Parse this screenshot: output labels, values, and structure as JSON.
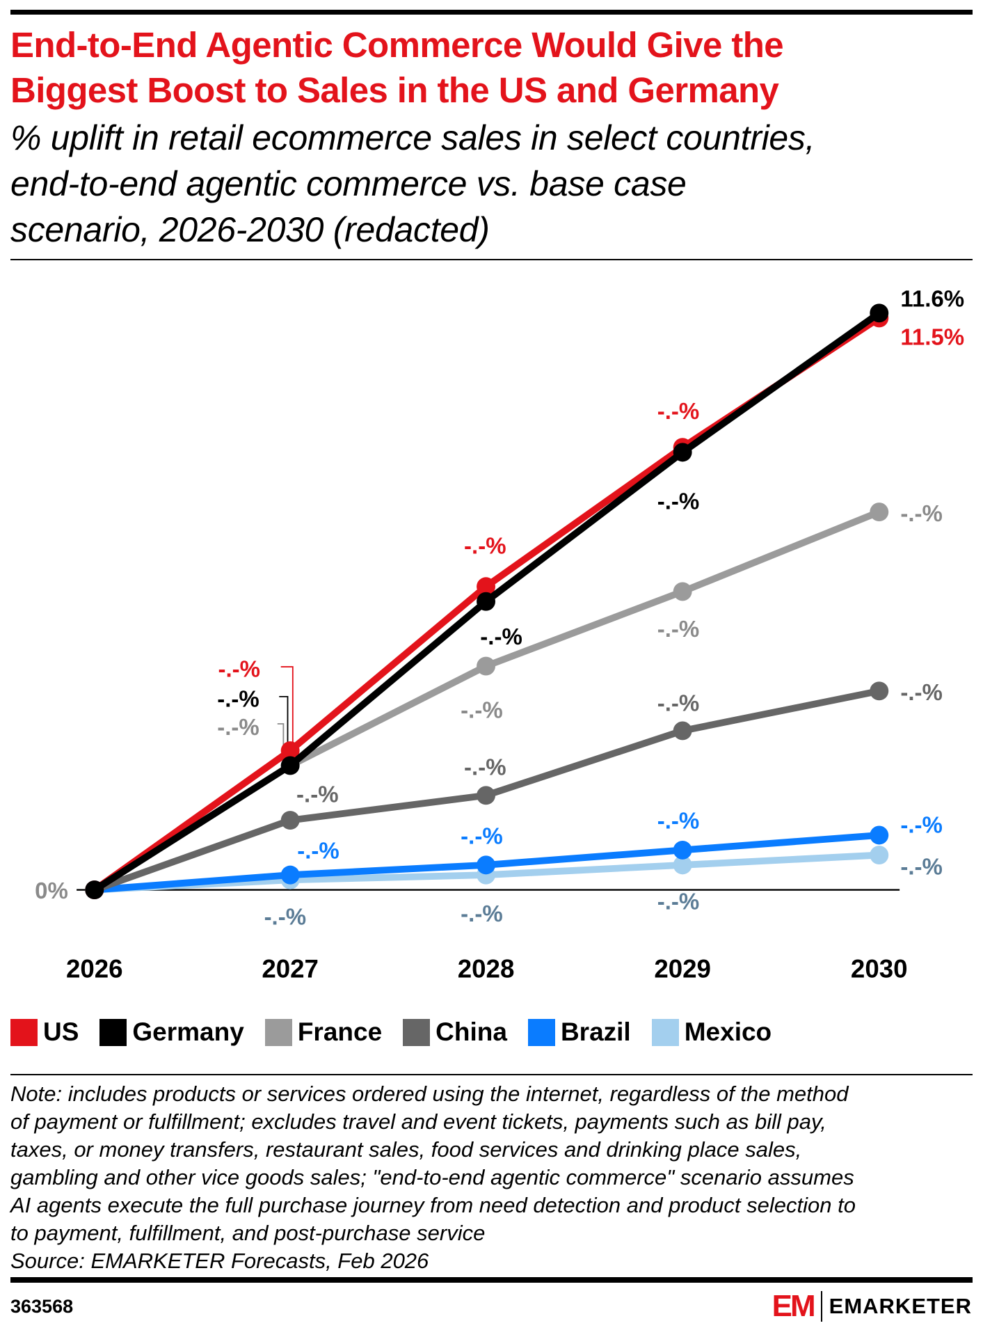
{
  "title": [
    "End-to-End Agentic Commerce Would Give the",
    "Biggest Boost to Sales in the US and Germany"
  ],
  "subtitle": [
    "% uplift in retail ecommerce sales in select countries,",
    "end-to-end agentic commerce vs. base case",
    "scenario, 2026-2030 (redacted)"
  ],
  "chart_data": {
    "type": "line",
    "x": [
      "2026",
      "2027",
      "2028",
      "2029",
      "2030"
    ],
    "ylabel": "",
    "y_tick_labels": [
      "0%"
    ],
    "grid": false,
    "legend_position": "bottom",
    "series": [
      {
        "name": "US",
        "color": "#e3131b",
        "label_color": "#e3131b",
        "values": [
          0,
          2.8,
          6.1,
          8.9,
          11.5
        ],
        "labels": [
          "",
          "-.-%",
          "-.-%",
          "-.-%",
          "11.5%"
        ]
      },
      {
        "name": "Germany",
        "color": "#000000",
        "label_color": "#000000",
        "values": [
          0,
          2.5,
          5.8,
          8.8,
          11.6
        ],
        "labels": [
          "",
          "-.-%",
          "-.-%",
          "-.-%",
          "11.6%"
        ]
      },
      {
        "name": "France",
        "color": "#9b9b9b",
        "label_color": "#8a8a8a",
        "values": [
          0,
          2.5,
          4.5,
          6.0,
          7.6
        ],
        "labels": [
          "",
          "-.-%",
          "-.-%",
          "-.-%",
          "-.-%"
        ]
      },
      {
        "name": "China",
        "color": "#666666",
        "label_color": "#666666",
        "values": [
          0,
          1.4,
          1.9,
          3.2,
          4.0
        ],
        "labels": [
          "",
          "-.-%",
          "-.-%",
          "-.-%",
          "-.-%"
        ]
      },
      {
        "name": "Brazil",
        "color": "#0a7cff",
        "label_color": "#0a7cff",
        "values": [
          0,
          0.3,
          0.5,
          0.8,
          1.1
        ],
        "labels": [
          "",
          "-.-%",
          "-.-%",
          "-.-%",
          "-.-%"
        ]
      },
      {
        "name": "Mexico",
        "color": "#a3cfee",
        "label_color": "#5b7c96",
        "values": [
          0,
          0.2,
          0.3,
          0.5,
          0.7
        ],
        "labels": [
          "",
          "-.-%",
          "-.-%",
          "-.-%",
          "-.-%"
        ]
      }
    ]
  },
  "note": [
    "Note: includes products or services ordered using the internet, regardless of the method",
    "of payment or fulfillment; excludes travel and event tickets, payments such as bill pay,",
    "taxes, or money transfers, restaurant sales, food services and drinking place sales,",
    "gambling and other vice goods sales; \"end-to-end agentic commerce\" scenario assumes",
    "AI agents execute the full purchase journey from need detection and product selection to",
    "to payment, fulfillment, and post-purchase service",
    "Source: EMARKETER Forecasts, Feb 2026"
  ],
  "chart_id": "363568",
  "logo": {
    "mark": "EM",
    "word": "EMARKETER",
    "color": "#e3131b"
  }
}
